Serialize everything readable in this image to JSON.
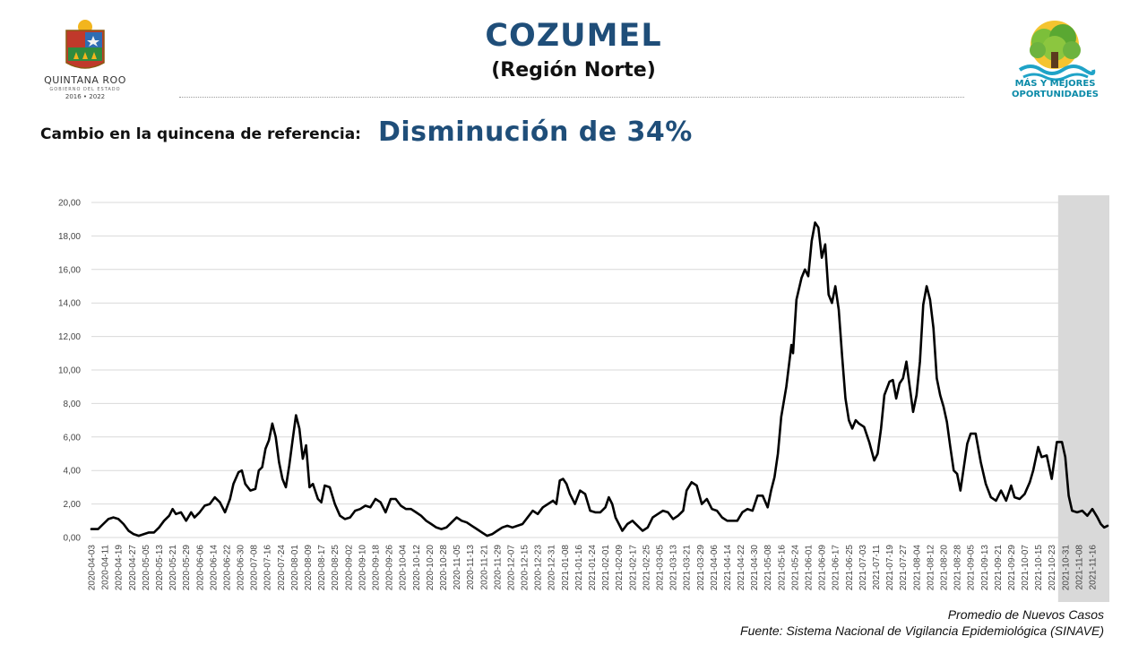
{
  "header": {
    "title": "COZUMEL",
    "subtitle": "(Región Norte)",
    "change_label": "Cambio en la quincena de referencia:",
    "change_value": "Disminución de 34%"
  },
  "logo_left": {
    "brand": "QUINTANA ROO",
    "sub": "GOBIERNO DEL ESTADO",
    "years": "2016 • 2022"
  },
  "logo_right": {
    "slogan_line1": "MÁS Y MEJORES",
    "slogan_line2": "OPORTUNIDADES"
  },
  "footer": {
    "caption": "Promedio de Nuevos Casos",
    "source": "Fuente: Sistema Nacional de Vigilancia Epidemiológica (SINAVE)"
  },
  "colors": {
    "title": "#1f4e79",
    "line": "#000000",
    "shade": "#d9d9d9",
    "grid": "#d9d9d9",
    "slogan": "#0a8aa8"
  },
  "chart_data": {
    "type": "line",
    "ylim": [
      0,
      20
    ],
    "grid": true,
    "y_ticks": [
      "0,00",
      "2,00",
      "4,00",
      "6,00",
      "8,00",
      "10,00",
      "12,00",
      "14,00",
      "16,00",
      "18,00",
      "20,00"
    ],
    "x_start": "2020-04-03",
    "x_end": "2021-11-24",
    "x_tick_labels": [
      "2020-04-03",
      "2020-04-11",
      "2020-04-19",
      "2020-04-27",
      "2020-05-05",
      "2020-05-13",
      "2020-05-21",
      "2020-05-29",
      "2020-06-06",
      "2020-06-14",
      "2020-06-22",
      "2020-06-30",
      "2020-07-08",
      "2020-07-16",
      "2020-07-24",
      "2020-08-01",
      "2020-08-09",
      "2020-08-17",
      "2020-08-25",
      "2020-09-02",
      "2020-09-10",
      "2020-09-18",
      "2020-09-26",
      "2020-10-04",
      "2020-10-12",
      "2020-10-20",
      "2020-10-28",
      "2020-11-05",
      "2020-11-13",
      "2020-11-21",
      "2020-11-29",
      "2020-12-07",
      "2020-12-15",
      "2020-12-23",
      "2020-12-31",
      "2021-01-08",
      "2021-01-16",
      "2021-01-24",
      "2021-02-01",
      "2021-02-09",
      "2021-02-17",
      "2021-02-25",
      "2021-03-05",
      "2021-03-13",
      "2021-03-21",
      "2021-03-29",
      "2021-04-06",
      "2021-04-14",
      "2021-04-22",
      "2021-04-30",
      "2021-05-08",
      "2021-05-16",
      "2021-05-24",
      "2021-06-01",
      "2021-06-09",
      "2021-06-17",
      "2021-06-25",
      "2021-07-03",
      "2021-07-11",
      "2021-07-19",
      "2021-07-27",
      "2021-08-04",
      "2021-08-12",
      "2021-08-20",
      "2021-08-28",
      "2021-09-05",
      "2021-09-13",
      "2021-09-21",
      "2021-09-29",
      "2021-10-07",
      "2021-10-15",
      "2021-10-23",
      "2021-10-31",
      "2021-11-08",
      "2021-11-16"
    ],
    "shaded_from": "2021-10-31",
    "series": [
      {
        "points": [
          [
            "2020-04-03",
            0.5
          ],
          [
            "2020-04-07",
            0.5
          ],
          [
            "2020-04-10",
            0.8
          ],
          [
            "2020-04-13",
            1.1
          ],
          [
            "2020-04-16",
            1.2
          ],
          [
            "2020-04-19",
            1.1
          ],
          [
            "2020-04-22",
            0.8
          ],
          [
            "2020-04-25",
            0.4
          ],
          [
            "2020-04-28",
            0.2
          ],
          [
            "2020-05-01",
            0.1
          ],
          [
            "2020-05-04",
            0.2
          ],
          [
            "2020-05-07",
            0.3
          ],
          [
            "2020-05-10",
            0.3
          ],
          [
            "2020-05-13",
            0.6
          ],
          [
            "2020-05-16",
            1.0
          ],
          [
            "2020-05-19",
            1.3
          ],
          [
            "2020-05-21",
            1.7
          ],
          [
            "2020-05-23",
            1.4
          ],
          [
            "2020-05-26",
            1.5
          ],
          [
            "2020-05-29",
            1.0
          ],
          [
            "2020-06-01",
            1.5
          ],
          [
            "2020-06-03",
            1.2
          ],
          [
            "2020-06-06",
            1.5
          ],
          [
            "2020-06-09",
            1.9
          ],
          [
            "2020-06-12",
            2.0
          ],
          [
            "2020-06-15",
            2.4
          ],
          [
            "2020-06-18",
            2.1
          ],
          [
            "2020-06-21",
            1.5
          ],
          [
            "2020-06-24",
            2.3
          ],
          [
            "2020-06-26",
            3.2
          ],
          [
            "2020-06-29",
            3.9
          ],
          [
            "2020-07-01",
            4.0
          ],
          [
            "2020-07-03",
            3.2
          ],
          [
            "2020-07-06",
            2.8
          ],
          [
            "2020-07-09",
            2.9
          ],
          [
            "2020-07-11",
            4.0
          ],
          [
            "2020-07-13",
            4.2
          ],
          [
            "2020-07-15",
            5.3
          ],
          [
            "2020-07-17",
            5.8
          ],
          [
            "2020-07-19",
            6.8
          ],
          [
            "2020-07-21",
            6.0
          ],
          [
            "2020-07-23",
            4.5
          ],
          [
            "2020-07-25",
            3.5
          ],
          [
            "2020-07-27",
            3.0
          ],
          [
            "2020-07-29",
            4.3
          ],
          [
            "2020-07-31",
            5.8
          ],
          [
            "2020-08-02",
            7.3
          ],
          [
            "2020-08-04",
            6.5
          ],
          [
            "2020-08-06",
            4.7
          ],
          [
            "2020-08-08",
            5.5
          ],
          [
            "2020-08-10",
            3.0
          ],
          [
            "2020-08-12",
            3.2
          ],
          [
            "2020-08-15",
            2.3
          ],
          [
            "2020-08-17",
            2.1
          ],
          [
            "2020-08-19",
            3.1
          ],
          [
            "2020-08-22",
            3.0
          ],
          [
            "2020-08-25",
            2.0
          ],
          [
            "2020-08-28",
            1.3
          ],
          [
            "2020-08-31",
            1.1
          ],
          [
            "2020-09-03",
            1.2
          ],
          [
            "2020-09-06",
            1.6
          ],
          [
            "2020-09-09",
            1.7
          ],
          [
            "2020-09-12",
            1.9
          ],
          [
            "2020-09-15",
            1.8
          ],
          [
            "2020-09-18",
            2.3
          ],
          [
            "2020-09-21",
            2.1
          ],
          [
            "2020-09-24",
            1.5
          ],
          [
            "2020-09-27",
            2.3
          ],
          [
            "2020-09-30",
            2.3
          ],
          [
            "2020-10-03",
            1.9
          ],
          [
            "2020-10-06",
            1.7
          ],
          [
            "2020-10-09",
            1.7
          ],
          [
            "2020-10-12",
            1.5
          ],
          [
            "2020-10-15",
            1.3
          ],
          [
            "2020-10-18",
            1.0
          ],
          [
            "2020-10-21",
            0.8
          ],
          [
            "2020-10-24",
            0.6
          ],
          [
            "2020-10-27",
            0.5
          ],
          [
            "2020-10-30",
            0.6
          ],
          [
            "2020-11-02",
            0.9
          ],
          [
            "2020-11-05",
            1.2
          ],
          [
            "2020-11-08",
            1.0
          ],
          [
            "2020-11-11",
            0.9
          ],
          [
            "2020-11-14",
            0.7
          ],
          [
            "2020-11-17",
            0.5
          ],
          [
            "2020-11-20",
            0.3
          ],
          [
            "2020-11-23",
            0.1
          ],
          [
            "2020-11-26",
            0.2
          ],
          [
            "2020-11-29",
            0.4
          ],
          [
            "2020-12-02",
            0.6
          ],
          [
            "2020-12-05",
            0.7
          ],
          [
            "2020-12-08",
            0.6
          ],
          [
            "2020-12-11",
            0.7
          ],
          [
            "2020-12-14",
            0.8
          ],
          [
            "2020-12-17",
            1.2
          ],
          [
            "2020-12-20",
            1.6
          ],
          [
            "2020-12-23",
            1.4
          ],
          [
            "2020-12-26",
            1.8
          ],
          [
            "2020-12-29",
            2.0
          ],
          [
            "2021-01-01",
            2.2
          ],
          [
            "2021-01-03",
            2.0
          ],
          [
            "2021-01-05",
            3.4
          ],
          [
            "2021-01-07",
            3.5
          ],
          [
            "2021-01-09",
            3.2
          ],
          [
            "2021-01-11",
            2.6
          ],
          [
            "2021-01-14",
            2.0
          ],
          [
            "2021-01-17",
            2.8
          ],
          [
            "2021-01-20",
            2.6
          ],
          [
            "2021-01-23",
            1.6
          ],
          [
            "2021-01-26",
            1.5
          ],
          [
            "2021-01-29",
            1.5
          ],
          [
            "2021-02-01",
            1.8
          ],
          [
            "2021-02-03",
            2.4
          ],
          [
            "2021-02-05",
            2.0
          ],
          [
            "2021-02-07",
            1.2
          ],
          [
            "2021-02-09",
            0.8
          ],
          [
            "2021-02-11",
            0.4
          ],
          [
            "2021-02-14",
            0.8
          ],
          [
            "2021-02-17",
            1.0
          ],
          [
            "2021-02-20",
            0.7
          ],
          [
            "2021-02-23",
            0.4
          ],
          [
            "2021-02-26",
            0.6
          ],
          [
            "2021-03-01",
            1.2
          ],
          [
            "2021-03-04",
            1.4
          ],
          [
            "2021-03-07",
            1.6
          ],
          [
            "2021-03-10",
            1.5
          ],
          [
            "2021-03-13",
            1.1
          ],
          [
            "2021-03-16",
            1.3
          ],
          [
            "2021-03-19",
            1.6
          ],
          [
            "2021-03-21",
            2.8
          ],
          [
            "2021-03-24",
            3.3
          ],
          [
            "2021-03-27",
            3.1
          ],
          [
            "2021-03-30",
            2.0
          ],
          [
            "2021-04-02",
            2.3
          ],
          [
            "2021-04-05",
            1.7
          ],
          [
            "2021-04-08",
            1.6
          ],
          [
            "2021-04-11",
            1.2
          ],
          [
            "2021-04-14",
            1.0
          ],
          [
            "2021-04-17",
            1.0
          ],
          [
            "2021-04-20",
            1.0
          ],
          [
            "2021-04-23",
            1.5
          ],
          [
            "2021-04-26",
            1.7
          ],
          [
            "2021-04-29",
            1.6
          ],
          [
            "2021-05-02",
            2.5
          ],
          [
            "2021-05-05",
            2.5
          ],
          [
            "2021-05-08",
            1.8
          ],
          [
            "2021-05-10",
            2.8
          ],
          [
            "2021-05-12",
            3.6
          ],
          [
            "2021-05-14",
            5.0
          ],
          [
            "2021-05-16",
            7.2
          ],
          [
            "2021-05-19",
            9.0
          ],
          [
            "2021-05-22",
            11.5
          ],
          [
            "2021-05-23",
            11.0
          ],
          [
            "2021-05-25",
            14.2
          ],
          [
            "2021-05-28",
            15.5
          ],
          [
            "2021-05-30",
            16.0
          ],
          [
            "2021-06-01",
            15.6
          ],
          [
            "2021-06-03",
            17.7
          ],
          [
            "2021-06-05",
            18.8
          ],
          [
            "2021-06-07",
            18.5
          ],
          [
            "2021-06-09",
            16.7
          ],
          [
            "2021-06-11",
            17.5
          ],
          [
            "2021-06-13",
            14.5
          ],
          [
            "2021-06-15",
            14.0
          ],
          [
            "2021-06-17",
            15.0
          ],
          [
            "2021-06-19",
            13.6
          ],
          [
            "2021-06-21",
            10.8
          ],
          [
            "2021-06-23",
            8.3
          ],
          [
            "2021-06-25",
            7.0
          ],
          [
            "2021-06-27",
            6.5
          ],
          [
            "2021-06-29",
            7.0
          ],
          [
            "2021-07-01",
            6.8
          ],
          [
            "2021-07-04",
            6.6
          ],
          [
            "2021-07-07",
            5.7
          ],
          [
            "2021-07-10",
            4.6
          ],
          [
            "2021-07-12",
            5.0
          ],
          [
            "2021-07-14",
            6.5
          ],
          [
            "2021-07-16",
            8.5
          ],
          [
            "2021-07-19",
            9.3
          ],
          [
            "2021-07-21",
            9.4
          ],
          [
            "2021-07-23",
            8.3
          ],
          [
            "2021-07-25",
            9.2
          ],
          [
            "2021-07-27",
            9.5
          ],
          [
            "2021-07-29",
            10.5
          ],
          [
            "2021-07-31",
            9.0
          ],
          [
            "2021-08-02",
            7.5
          ],
          [
            "2021-08-04",
            8.5
          ],
          [
            "2021-08-06",
            10.5
          ],
          [
            "2021-08-08",
            13.9
          ],
          [
            "2021-08-10",
            15.0
          ],
          [
            "2021-08-12",
            14.2
          ],
          [
            "2021-08-14",
            12.5
          ],
          [
            "2021-08-16",
            9.5
          ],
          [
            "2021-08-18",
            8.5
          ],
          [
            "2021-08-20",
            7.8
          ],
          [
            "2021-08-22",
            6.9
          ],
          [
            "2021-08-24",
            5.4
          ],
          [
            "2021-08-26",
            4.0
          ],
          [
            "2021-08-28",
            3.8
          ],
          [
            "2021-08-30",
            2.8
          ],
          [
            "2021-09-01",
            4.2
          ],
          [
            "2021-09-03",
            5.6
          ],
          [
            "2021-09-05",
            6.2
          ],
          [
            "2021-09-08",
            6.2
          ],
          [
            "2021-09-11",
            4.5
          ],
          [
            "2021-09-14",
            3.2
          ],
          [
            "2021-09-17",
            2.4
          ],
          [
            "2021-09-20",
            2.2
          ],
          [
            "2021-09-23",
            2.8
          ],
          [
            "2021-09-26",
            2.2
          ],
          [
            "2021-09-29",
            3.1
          ],
          [
            "2021-10-01",
            2.4
          ],
          [
            "2021-10-04",
            2.3
          ],
          [
            "2021-10-07",
            2.6
          ],
          [
            "2021-10-10",
            3.3
          ],
          [
            "2021-10-12",
            4.0
          ],
          [
            "2021-10-15",
            5.4
          ],
          [
            "2021-10-17",
            4.8
          ],
          [
            "2021-10-20",
            4.9
          ],
          [
            "2021-10-23",
            3.5
          ],
          [
            "2021-10-26",
            5.7
          ],
          [
            "2021-10-29",
            5.7
          ],
          [
            "2021-10-31",
            4.8
          ],
          [
            "2021-11-02",
            2.5
          ],
          [
            "2021-11-04",
            1.6
          ],
          [
            "2021-11-07",
            1.5
          ],
          [
            "2021-11-10",
            1.6
          ],
          [
            "2021-11-13",
            1.3
          ],
          [
            "2021-11-16",
            1.7
          ],
          [
            "2021-11-19",
            1.2
          ],
          [
            "2021-11-21",
            0.8
          ],
          [
            "2021-11-23",
            0.6
          ],
          [
            "2021-11-25",
            0.7
          ]
        ]
      }
    ]
  }
}
